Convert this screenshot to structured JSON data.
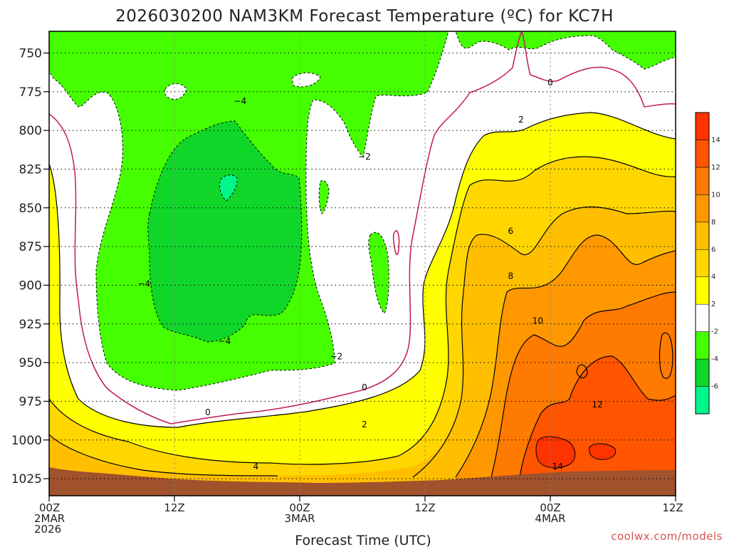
{
  "title": "2026030200 NAM3KM Forecast Temperature (ºC) for KC7H",
  "credit": "coolwx.com/models",
  "chart_data": {
    "type": "heatmap",
    "title": "2026030200 NAM3KM Forecast Temperature (ºC) for KC7H",
    "xlabel": "Forecast Time (UTC)",
    "ylabel": "",
    "x_ticks": [
      {
        "hour": 0,
        "lines": [
          "00Z",
          "2MAR",
          "2026"
        ]
      },
      {
        "hour": 12,
        "lines": [
          "12Z"
        ]
      },
      {
        "hour": 24,
        "lines": [
          "00Z",
          "3MAR"
        ]
      },
      {
        "hour": 36,
        "lines": [
          "12Z"
        ]
      },
      {
        "hour": 48,
        "lines": [
          "00Z",
          "4MAR"
        ]
      },
      {
        "hour": 60,
        "lines": [
          "12Z"
        ]
      }
    ],
    "xlim": [
      0,
      60
    ],
    "y_ticks": [
      750,
      775,
      800,
      825,
      850,
      875,
      900,
      925,
      950,
      975,
      1000,
      1025
    ],
    "ylim": [
      736,
      1036
    ],
    "y_unit": "hPa",
    "grid": true,
    "colorbar": {
      "levels": [
        -8,
        -6,
        -4,
        -2,
        2,
        4,
        6,
        8,
        10,
        12,
        14,
        16
      ],
      "labels": [
        "-6",
        "-4",
        "-2",
        "2",
        "4",
        "6",
        "8",
        "10",
        "12",
        "14"
      ],
      "colors": [
        "#00f58a",
        "#10d62a",
        "#45ff00",
        "#ffffff",
        "#ffff00",
        "#ffd600",
        "#ffbf00",
        "#ff9800",
        "#ff7a00",
        "#ff5500",
        "#ff3300"
      ]
    },
    "surface_color": "#a0522d",
    "contour_labels": [
      {
        "text": "0",
        "hour": 48.0,
        "p": 770
      },
      {
        "text": "2",
        "hour": 45.2,
        "p": 794
      },
      {
        "text": "−4",
        "hour": 18.3,
        "p": 782
      },
      {
        "text": "−2",
        "hour": 30.2,
        "p": 818
      },
      {
        "text": "6",
        "hour": 44.2,
        "p": 866
      },
      {
        "text": "−4",
        "hour": 9.1,
        "p": 900
      },
      {
        "text": "8",
        "hour": 44.2,
        "p": 895
      },
      {
        "text": "−4",
        "hour": 16.8,
        "p": 937
      },
      {
        "text": "10",
        "hour": 46.8,
        "p": 924
      },
      {
        "text": "−2",
        "hour": 27.5,
        "p": 947
      },
      {
        "text": "0",
        "hour": 30.2,
        "p": 967
      },
      {
        "text": "12",
        "hour": 52.5,
        "p": 978
      },
      {
        "text": "0",
        "hour": 15.2,
        "p": 983
      },
      {
        "text": "2",
        "hour": 30.2,
        "p": 991
      },
      {
        "text": "4",
        "hour": 19.8,
        "p": 1018
      },
      {
        "text": "14",
        "hour": 48.7,
        "p": 1018
      }
    ]
  }
}
